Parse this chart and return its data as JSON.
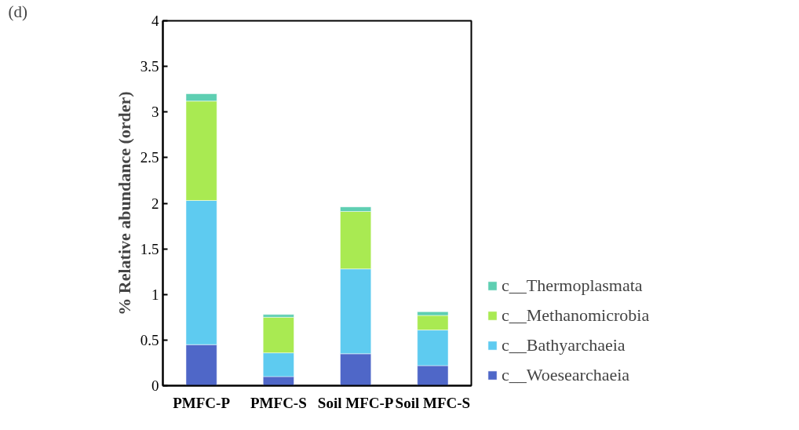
{
  "chart_data": {
    "type": "bar",
    "stacked": true,
    "ylabel": "% Relative abundance (order)",
    "categories": [
      "PMFC-P",
      "PMFC-S",
      "Soil MFC-P",
      "Soil MFC-S"
    ],
    "series": [
      {
        "name": "c__Woesearchaeia",
        "color": "#4f67c8",
        "values": [
          0.45,
          0.1,
          0.35,
          0.22
        ]
      },
      {
        "name": "c__Bathyarchaeia",
        "color": "#5ecbf0",
        "values": [
          1.58,
          0.26,
          0.93,
          0.39
        ]
      },
      {
        "name": "c__Methanomicrobia",
        "color": "#a9ea52",
        "values": [
          1.09,
          0.39,
          0.63,
          0.16
        ]
      },
      {
        "name": "c__Thermoplasmata",
        "color": "#5ecfb2",
        "values": [
          0.08,
          0.03,
          0.05,
          0.04
        ]
      }
    ],
    "ylim": [
      0,
      4
    ],
    "yticks": [
      0,
      0.5,
      1,
      1.5,
      2,
      2.5,
      3,
      3.5,
      4
    ],
    "grid": false,
    "legend": "right",
    "annotations": [
      "(d)"
    ]
  }
}
